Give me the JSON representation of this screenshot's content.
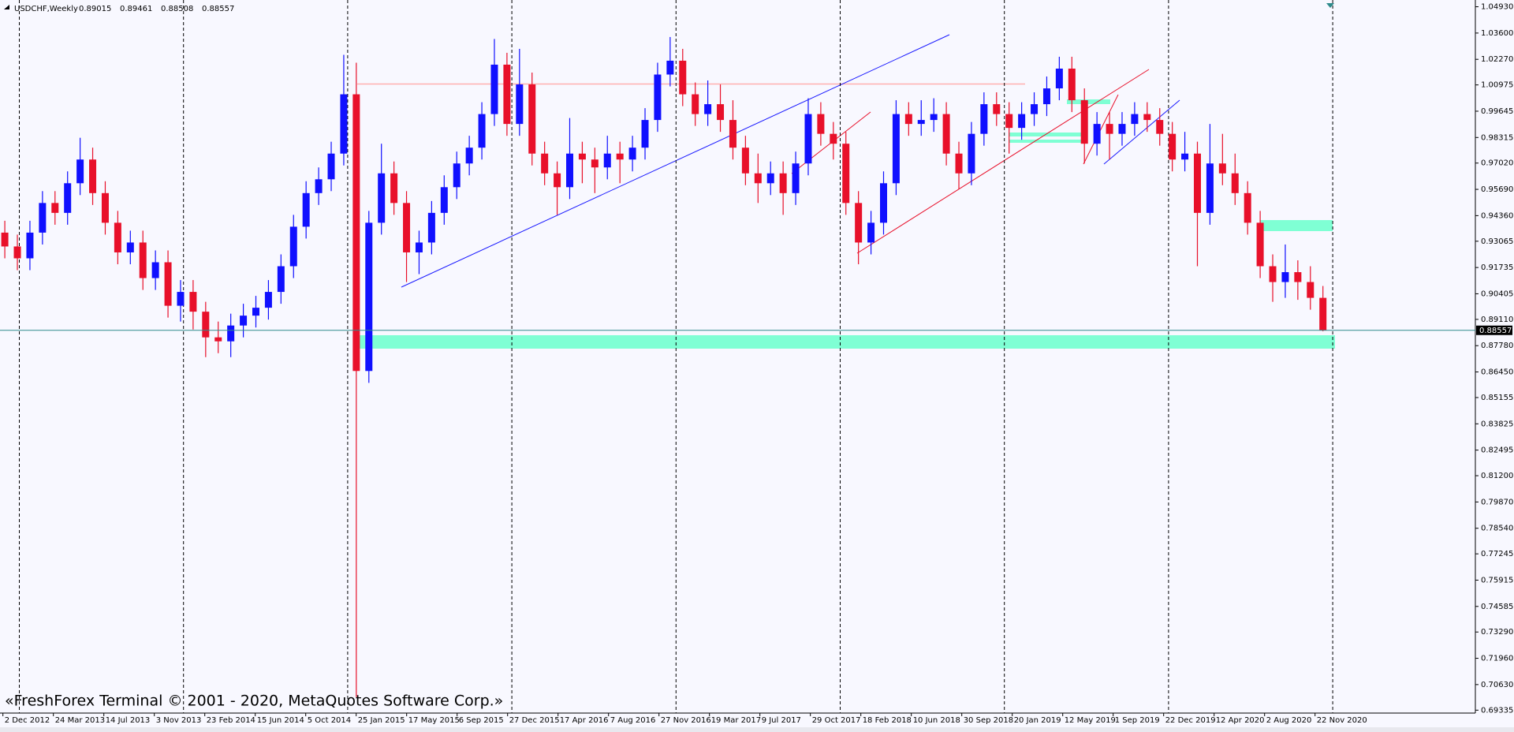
{
  "chart_data": {
    "type": "candlestick",
    "title": "USDCHF,Weekly",
    "header_values": [
      0.89015,
      0.89461,
      0.88508,
      0.88557
    ],
    "footer": "«FreshForex Terminal © 2001 - 2020, MetaQuotes Software Corp.»",
    "up_color": "#1010ff",
    "down_color": "#e8102a",
    "last_price": 0.88557,
    "ylim": [
      0.69188,
      1.05272
    ],
    "yticks": [
      {
        "value": 1.0493,
        "label": "1.04930"
      },
      {
        "value": 1.036,
        "label": "1.03600"
      },
      {
        "value": 1.0227,
        "label": "1.02270"
      },
      {
        "value": 1.00975,
        "label": "1.00975"
      },
      {
        "value": 0.99645,
        "label": "0.99645"
      },
      {
        "value": 0.98315,
        "label": "0.98315"
      },
      {
        "value": 0.9702,
        "label": "0.97020"
      },
      {
        "value": 0.9569,
        "label": "0.95690"
      },
      {
        "value": 0.9436,
        "label": "0.94360"
      },
      {
        "value": 0.93065,
        "label": "0.93065"
      },
      {
        "value": 0.91735,
        "label": "0.91735"
      },
      {
        "value": 0.90405,
        "label": "0.90405"
      },
      {
        "value": 0.8911,
        "label": "0.89110"
      },
      {
        "value": 0.8778,
        "label": "0.87780"
      },
      {
        "value": 0.8645,
        "label": "0.86450"
      },
      {
        "value": 0.85155,
        "label": "0.85155"
      },
      {
        "value": 0.83825,
        "label": "0.83825"
      },
      {
        "value": 0.82495,
        "label": "0.82495"
      },
      {
        "value": 0.812,
        "label": "0.81200"
      },
      {
        "value": 0.7987,
        "label": "0.79870"
      },
      {
        "value": 0.7854,
        "label": "0.78540"
      },
      {
        "value": 0.77245,
        "label": "0.77245"
      },
      {
        "value": 0.75915,
        "label": "0.75915"
      },
      {
        "value": 0.74585,
        "label": "0.74585"
      },
      {
        "value": 0.7329,
        "label": "0.73290"
      },
      {
        "value": 0.7196,
        "label": "0.71960"
      },
      {
        "value": 0.7063,
        "label": "0.70630"
      },
      {
        "value": 0.69335,
        "label": "0.69335"
      }
    ],
    "xtick_labels": [
      "2 Dec 2012",
      "24 Mar 2013",
      "14 Jul 2013",
      "3 Nov 2013",
      "23 Feb 2014",
      "15 Jun 2014",
      "5 Oct 2014",
      "25 Jan 2015",
      "17 May 2015",
      "6 Sep 2015",
      "27 Dec 2015",
      "17 Apr 2016",
      "7 Aug 2016",
      "27 Nov 2016",
      "19 Mar 2017",
      "9 Jul 2017",
      "29 Oct 2017",
      "18 Feb 2018",
      "10 Jun 2018",
      "30 Sep 2018",
      "20 Jan 2019",
      "12 May 2019",
      "1 Sep 2019",
      "22 Dec 2019",
      "12 Apr 2020",
      "2 Aug 2020",
      "22 Nov 2020"
    ],
    "ohlc": [
      [
        0.935,
        0.941,
        0.922,
        0.928
      ],
      [
        0.928,
        0.934,
        0.916,
        0.922
      ],
      [
        0.922,
        0.941,
        0.916,
        0.935
      ],
      [
        0.935,
        0.956,
        0.929,
        0.95
      ],
      [
        0.95,
        0.956,
        0.939,
        0.945
      ],
      [
        0.945,
        0.966,
        0.939,
        0.96
      ],
      [
        0.96,
        0.983,
        0.954,
        0.972
      ],
      [
        0.972,
        0.978,
        0.949,
        0.955
      ],
      [
        0.955,
        0.961,
        0.934,
        0.94
      ],
      [
        0.94,
        0.946,
        0.919,
        0.925
      ],
      [
        0.925,
        0.936,
        0.919,
        0.93
      ],
      [
        0.93,
        0.936,
        0.906,
        0.912
      ],
      [
        0.912,
        0.926,
        0.906,
        0.92
      ],
      [
        0.92,
        0.926,
        0.892,
        0.898
      ],
      [
        0.898,
        0.911,
        0.89,
        0.905
      ],
      [
        0.905,
        0.911,
        0.886,
        0.895
      ],
      [
        0.895,
        0.9,
        0.872,
        0.882
      ],
      [
        0.882,
        0.89,
        0.874,
        0.88
      ],
      [
        0.88,
        0.894,
        0.872,
        0.888
      ],
      [
        0.888,
        0.899,
        0.882,
        0.893
      ],
      [
        0.893,
        0.903,
        0.887,
        0.897
      ],
      [
        0.897,
        0.911,
        0.891,
        0.905
      ],
      [
        0.905,
        0.924,
        0.899,
        0.918
      ],
      [
        0.918,
        0.944,
        0.912,
        0.938
      ],
      [
        0.938,
        0.961,
        0.932,
        0.955
      ],
      [
        0.955,
        0.968,
        0.949,
        0.962
      ],
      [
        0.962,
        0.981,
        0.956,
        0.975
      ],
      [
        0.975,
        1.025,
        0.969,
        1.005
      ],
      [
        1.005,
        1.021,
        0.7,
        0.865
      ],
      [
        0.865,
        0.946,
        0.859,
        0.94
      ],
      [
        0.94,
        0.98,
        0.934,
        0.965
      ],
      [
        0.965,
        0.971,
        0.944,
        0.95
      ],
      [
        0.95,
        0.956,
        0.91,
        0.925
      ],
      [
        0.925,
        0.936,
        0.914,
        0.93
      ],
      [
        0.93,
        0.951,
        0.924,
        0.945
      ],
      [
        0.945,
        0.964,
        0.939,
        0.958
      ],
      [
        0.958,
        0.976,
        0.952,
        0.97
      ],
      [
        0.97,
        0.984,
        0.964,
        0.978
      ],
      [
        0.978,
        1.001,
        0.972,
        0.995
      ],
      [
        0.995,
        1.033,
        0.989,
        1.02
      ],
      [
        1.02,
        1.026,
        0.984,
        0.99
      ],
      [
        0.99,
        1.028,
        0.984,
        1.01
      ],
      [
        1.01,
        1.016,
        0.969,
        0.975
      ],
      [
        0.975,
        0.981,
        0.959,
        0.965
      ],
      [
        0.965,
        0.971,
        0.944,
        0.958
      ],
      [
        0.958,
        0.993,
        0.952,
        0.975
      ],
      [
        0.975,
        0.981,
        0.96,
        0.972
      ],
      [
        0.972,
        0.978,
        0.955,
        0.968
      ],
      [
        0.968,
        0.984,
        0.962,
        0.975
      ],
      [
        0.975,
        0.981,
        0.96,
        0.972
      ],
      [
        0.972,
        0.984,
        0.966,
        0.978
      ],
      [
        0.978,
        0.998,
        0.972,
        0.992
      ],
      [
        0.992,
        1.021,
        0.986,
        1.015
      ],
      [
        1.015,
        1.034,
        1.009,
        1.022
      ],
      [
        1.022,
        1.028,
        0.999,
        1.005
      ],
      [
        1.005,
        1.011,
        0.989,
        0.995
      ],
      [
        0.995,
        1.012,
        0.989,
        1.0
      ],
      [
        1.0,
        1.01,
        0.986,
        0.992
      ],
      [
        0.992,
        1.002,
        0.972,
        0.978
      ],
      [
        0.978,
        0.984,
        0.959,
        0.965
      ],
      [
        0.965,
        0.975,
        0.95,
        0.96
      ],
      [
        0.96,
        0.971,
        0.954,
        0.965
      ],
      [
        0.965,
        0.971,
        0.944,
        0.955
      ],
      [
        0.955,
        0.976,
        0.949,
        0.97
      ],
      [
        0.97,
        1.003,
        0.964,
        0.995
      ],
      [
        0.995,
        1.001,
        0.979,
        0.985
      ],
      [
        0.985,
        0.991,
        0.972,
        0.98
      ],
      [
        0.98,
        0.986,
        0.944,
        0.95
      ],
      [
        0.95,
        0.956,
        0.919,
        0.93
      ],
      [
        0.93,
        0.946,
        0.924,
        0.94
      ],
      [
        0.94,
        0.966,
        0.934,
        0.96
      ],
      [
        0.96,
        1.002,
        0.954,
        0.995
      ],
      [
        0.995,
        1.001,
        0.984,
        0.99
      ],
      [
        0.99,
        1.002,
        0.984,
        0.992
      ],
      [
        0.992,
        1.003,
        0.986,
        0.995
      ],
      [
        0.995,
        1.001,
        0.969,
        0.975
      ],
      [
        0.975,
        0.981,
        0.957,
        0.965
      ],
      [
        0.965,
        0.991,
        0.959,
        0.985
      ],
      [
        0.985,
        1.006,
        0.979,
        1.0
      ],
      [
        1.0,
        1.006,
        0.989,
        0.995
      ],
      [
        0.995,
        1.001,
        0.975,
        0.988
      ],
      [
        0.988,
        1.001,
        0.982,
        0.995
      ],
      [
        0.995,
        1.006,
        0.989,
        1.0
      ],
      [
        1.0,
        1.014,
        0.994,
        1.008
      ],
      [
        1.008,
        1.024,
        1.002,
        1.018
      ],
      [
        1.018,
        1.024,
        0.996,
        1.002
      ],
      [
        1.002,
        1.008,
        0.97,
        0.98
      ],
      [
        0.98,
        0.996,
        0.974,
        0.99
      ],
      [
        0.99,
        0.996,
        0.972,
        0.985
      ],
      [
        0.985,
        0.996,
        0.979,
        0.99
      ],
      [
        0.99,
        1.001,
        0.984,
        0.995
      ],
      [
        0.995,
        1.001,
        0.986,
        0.992
      ],
      [
        0.992,
        0.998,
        0.979,
        0.985
      ],
      [
        0.985,
        0.991,
        0.966,
        0.972
      ],
      [
        0.972,
        0.986,
        0.966,
        0.975
      ],
      [
        0.975,
        0.981,
        0.918,
        0.945
      ],
      [
        0.945,
        0.99,
        0.939,
        0.97
      ],
      [
        0.97,
        0.985,
        0.959,
        0.965
      ],
      [
        0.965,
        0.975,
        0.949,
        0.955
      ],
      [
        0.955,
        0.961,
        0.934,
        0.94
      ],
      [
        0.94,
        0.946,
        0.912,
        0.918
      ],
      [
        0.918,
        0.924,
        0.9,
        0.91
      ],
      [
        0.91,
        0.929,
        0.902,
        0.915
      ],
      [
        0.915,
        0.921,
        0.901,
        0.91
      ],
      [
        0.91,
        0.918,
        0.896,
        0.902
      ],
      [
        0.902,
        0.908,
        0.88508,
        0.88557
      ]
    ]
  }
}
